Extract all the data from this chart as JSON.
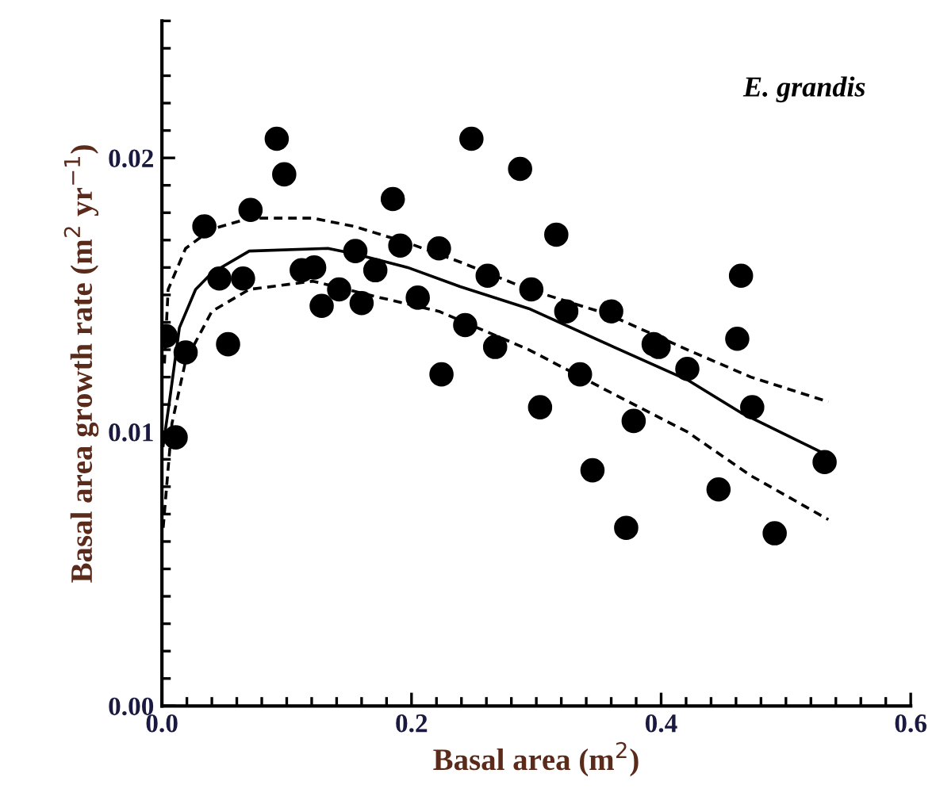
{
  "chart_data": {
    "type": "scatter",
    "xlabel": "Basal area (m$^{2}$)",
    "ylabel": "Basal area growth rate (m$^{2}$ yr$^{−1}$)",
    "annotations": [
      "E. grandis"
    ],
    "xlim": [
      0,
      0.6
    ],
    "ylim": [
      0,
      0.025
    ],
    "xticks": [
      {
        "value": 0,
        "label": "0.0"
      },
      {
        "value": 0.2,
        "label": "0.2"
      },
      {
        "value": 0.4,
        "label": "0.4"
      },
      {
        "value": 0.6,
        "label": "0.6"
      }
    ],
    "yticks": [
      {
        "value": 0,
        "label": "0.00"
      },
      {
        "value": 0.01,
        "label": "0.01"
      },
      {
        "value": 0.02,
        "label": "0.02"
      }
    ],
    "grid": false,
    "legend": false,
    "series": [
      {
        "color": "#000000",
        "marker": "circle",
        "x": [
          0.003,
          0.019,
          0.011,
          0.034,
          0.046,
          0.053,
          0.065,
          0.071,
          0.092,
          0.098,
          0.112,
          0.122,
          0.128,
          0.142,
          0.16,
          0.155,
          0.171,
          0.185,
          0.191,
          0.205,
          0.222,
          0.224,
          0.243,
          0.248,
          0.261,
          0.267,
          0.287,
          0.296,
          0.303,
          0.316,
          0.324,
          0.335,
          0.345,
          0.36,
          0.372,
          0.378,
          0.394,
          0.398,
          0.421,
          0.446,
          0.461,
          0.464,
          0.473,
          0.491,
          0.531
        ],
        "values": [
          0.0135,
          0.0129,
          0.0098,
          0.0175,
          0.0156,
          0.0132,
          0.0156,
          0.0181,
          0.0207,
          0.0194,
          0.0159,
          0.016,
          0.0146,
          0.0152,
          0.0147,
          0.0166,
          0.0159,
          0.0185,
          0.0168,
          0.0149,
          0.0167,
          0.0121,
          0.0139,
          0.0207,
          0.0157,
          0.0131,
          0.0196,
          0.0152,
          0.0109,
          0.0172,
          0.0144,
          0.0121,
          0.0086,
          0.0144,
          0.0065,
          0.0104,
          0.0132,
          0.0131,
          0.0123,
          0.0079,
          0.0134,
          0.0157,
          0.0109,
          0.0063,
          0.0089
        ]
      },
      {
        "type": "line",
        "color": "#000000",
        "line_style": "solid",
        "marker": "none",
        "x": [
          0.001,
          0.006,
          0.014,
          0.027,
          0.04,
          0.07,
          0.133,
          0.154,
          0.197,
          0.239,
          0.294,
          0.362,
          0.421,
          0.464,
          0.531
        ],
        "values": [
          0.0095,
          0.0111,
          0.0138,
          0.0152,
          0.0158,
          0.0166,
          0.0167,
          0.0165,
          0.016,
          0.0153,
          0.0145,
          0.0131,
          0.0119,
          0.0107,
          0.0092
        ]
      },
      {
        "type": "line",
        "color": "#000000",
        "line_style": "dashed",
        "marker": "none",
        "x": [
          0.002,
          0.005,
          0.019,
          0.04,
          0.07,
          0.121,
          0.154,
          0.197,
          0.239,
          0.294,
          0.357,
          0.421,
          0.472,
          0.534
        ],
        "values": [
          0.0125,
          0.0152,
          0.0167,
          0.0174,
          0.0178,
          0.0178,
          0.0175,
          0.0169,
          0.0162,
          0.0152,
          0.0143,
          0.013,
          0.012,
          0.0111
        ]
      },
      {
        "type": "line",
        "color": "#000000",
        "line_style": "dashed",
        "marker": "none",
        "x": [
          0.001,
          0.008,
          0.019,
          0.04,
          0.07,
          0.121,
          0.175,
          0.222,
          0.294,
          0.357,
          0.421,
          0.472,
          0.534
        ],
        "values": [
          0.0065,
          0.0103,
          0.0126,
          0.0144,
          0.0152,
          0.0155,
          0.0149,
          0.0144,
          0.013,
          0.0115,
          0.01,
          0.0084,
          0.0068
        ]
      }
    ]
  }
}
